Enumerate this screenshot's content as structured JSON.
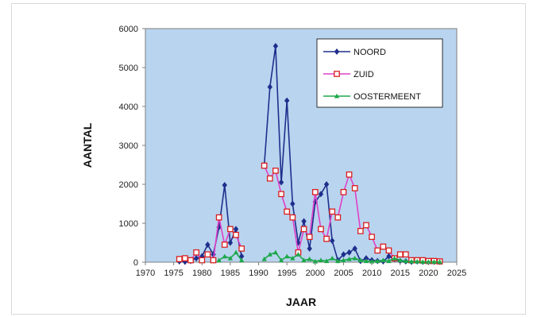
{
  "chart_data": {
    "type": "line",
    "title": "",
    "xlabel": "JAAR",
    "ylabel": "AANTAL",
    "xlim": [
      1970,
      2025
    ],
    "ylim": [
      0,
      6000
    ],
    "x_ticks": [
      "1970",
      "1975",
      "1980",
      "1985",
      "1990",
      "1995",
      "2000",
      "2005",
      "2010",
      "2015",
      "2020",
      "2025"
    ],
    "y_ticks": [
      "0",
      "1000",
      "2000",
      "3000",
      "4000",
      "5000",
      "6000"
    ],
    "grid": false,
    "legend_position": "top-right",
    "plot_background": "#b9d4ef",
    "series": [
      {
        "name": "NOORD",
        "color": "#1f2e8c",
        "marker": "diamond",
        "segments": [
          [
            [
              1976,
              20
            ],
            [
              1977,
              10
            ],
            [
              1978,
              30
            ],
            [
              1979,
              100
            ],
            [
              1980,
              150
            ],
            [
              1981,
              450
            ],
            [
              1982,
              200
            ],
            [
              1983,
              900
            ],
            [
              1984,
              1980
            ],
            [
              1985,
              500
            ],
            [
              1986,
              850
            ],
            [
              1987,
              150
            ]
          ],
          [
            [
              1991,
              2500
            ],
            [
              1992,
              4500
            ],
            [
              1993,
              5550
            ],
            [
              1994,
              2050
            ],
            [
              1995,
              4150
            ],
            [
              1996,
              1500
            ],
            [
              1997,
              500
            ],
            [
              1998,
              1050
            ],
            [
              1999,
              350
            ],
            [
              2000,
              1550
            ],
            [
              2001,
              1750
            ],
            [
              2002,
              2000
            ],
            [
              2003,
              550
            ],
            [
              2004,
              50
            ],
            [
              2005,
              200
            ],
            [
              2006,
              250
            ],
            [
              2007,
              350
            ],
            [
              2008,
              30
            ],
            [
              2009,
              100
            ],
            [
              2010,
              50
            ],
            [
              2011,
              30
            ],
            [
              2012,
              20
            ],
            [
              2013,
              150
            ],
            [
              2014,
              80
            ],
            [
              2015,
              30
            ],
            [
              2016,
              20
            ],
            [
              2017,
              10
            ],
            [
              2018,
              20
            ],
            [
              2019,
              10
            ],
            [
              2020,
              10
            ],
            [
              2021,
              10
            ],
            [
              2022,
              10
            ]
          ]
        ]
      },
      {
        "name": "ZUID",
        "color": "#e040c8",
        "marker": "square-open",
        "marker_edge": "#d81e1e",
        "segments": [
          [
            [
              1976,
              80
            ],
            [
              1977,
              100
            ],
            [
              1978,
              50
            ],
            [
              1979,
              250
            ],
            [
              1980,
              50
            ],
            [
              1981,
              200
            ],
            [
              1982,
              50
            ],
            [
              1983,
              1150
            ],
            [
              1984,
              450
            ],
            [
              1985,
              850
            ],
            [
              1986,
              700
            ],
            [
              1987,
              350
            ]
          ],
          [
            [
              1991,
              2480
            ],
            [
              1992,
              2150
            ],
            [
              1993,
              2350
            ],
            [
              1994,
              1750
            ],
            [
              1995,
              1300
            ],
            [
              1996,
              1150
            ],
            [
              1997,
              250
            ],
            [
              1998,
              850
            ],
            [
              1999,
              650
            ],
            [
              2000,
              1800
            ],
            [
              2001,
              850
            ],
            [
              2002,
              600
            ],
            [
              2003,
              1300
            ],
            [
              2004,
              1150
            ],
            [
              2005,
              1800
            ],
            [
              2006,
              2250
            ],
            [
              2007,
              1900
            ],
            [
              2008,
              800
            ],
            [
              2009,
              950
            ],
            [
              2010,
              650
            ],
            [
              2011,
              300
            ],
            [
              2012,
              400
            ],
            [
              2013,
              300
            ],
            [
              2014,
              100
            ],
            [
              2015,
              200
            ],
            [
              2016,
              200
            ],
            [
              2017,
              50
            ],
            [
              2018,
              50
            ],
            [
              2019,
              50
            ],
            [
              2020,
              30
            ],
            [
              2021,
              30
            ],
            [
              2022,
              20
            ]
          ]
        ]
      },
      {
        "name": "OOSTERMEENT",
        "color": "#1ca84a",
        "marker": "triangle",
        "segments": [
          [
            [
              1983,
              50
            ],
            [
              1984,
              150
            ],
            [
              1985,
              100
            ],
            [
              1986,
              250
            ],
            [
              1987,
              50
            ]
          ],
          [
            [
              1991,
              80
            ],
            [
              1992,
              200
            ],
            [
              1993,
              250
            ],
            [
              1994,
              50
            ],
            [
              1995,
              150
            ],
            [
              1996,
              100
            ],
            [
              1997,
              200
            ],
            [
              1998,
              50
            ],
            [
              1999,
              80
            ],
            [
              2000,
              20
            ],
            [
              2001,
              50
            ],
            [
              2002,
              30
            ],
            [
              2003,
              100
            ],
            [
              2004,
              30
            ],
            [
              2005,
              50
            ],
            [
              2006,
              80
            ],
            [
              2007,
              100
            ],
            [
              2008,
              50
            ],
            [
              2009,
              30
            ],
            [
              2010,
              20
            ],
            [
              2011,
              30
            ],
            [
              2012,
              50
            ],
            [
              2013,
              30
            ],
            [
              2014,
              100
            ],
            [
              2015,
              50
            ],
            [
              2016,
              30
            ],
            [
              2017,
              20
            ],
            [
              2018,
              20
            ],
            [
              2019,
              10
            ],
            [
              2020,
              10
            ],
            [
              2021,
              10
            ],
            [
              2022,
              10
            ]
          ]
        ]
      }
    ]
  }
}
